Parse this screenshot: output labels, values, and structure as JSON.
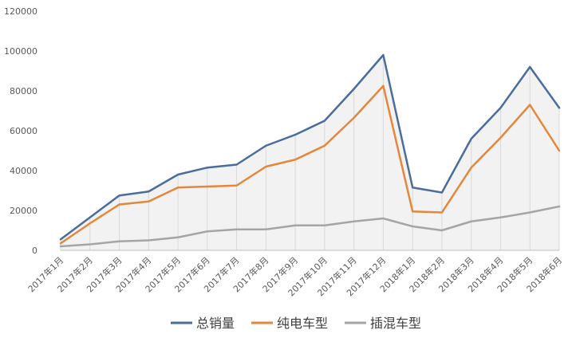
{
  "chart_data": {
    "type": "line",
    "title": "",
    "xlabel": "",
    "ylabel": "",
    "ylim": [
      0,
      120000
    ],
    "yticks": [
      0,
      20000,
      40000,
      60000,
      80000,
      100000,
      120000
    ],
    "grid": "vertical lines with light fill under total line",
    "legend_position": "bottom",
    "categories": [
      "2017年1月",
      "2017年2月",
      "2017年3月",
      "2017年4月",
      "2017年5月",
      "2017年6月",
      "2017年7月",
      "2017年8月",
      "2017年9月",
      "2017年10月",
      "2017年11月",
      "2017年12月",
      "2018年1月",
      "2018年2月",
      "2018年3月",
      "2018年4月",
      "2018年5月",
      "2018年6月"
    ],
    "series": [
      {
        "name": "总销量",
        "color": "#4a6d9c",
        "values": [
          5500,
          16500,
          27500,
          29500,
          38000,
          41500,
          43000,
          52500,
          58000,
          65000,
          81000,
          98000,
          31500,
          29000,
          56000,
          71500,
          92000,
          71500
        ]
      },
      {
        "name": "纯电车型",
        "color": "#e3873a",
        "values": [
          3500,
          13500,
          23000,
          24500,
          31500,
          32000,
          32500,
          42000,
          45500,
          52500,
          66500,
          82500,
          19500,
          19000,
          41500,
          56500,
          73000,
          50000
        ]
      },
      {
        "name": "插混车型",
        "color": "#a5a5a5",
        "values": [
          2000,
          3000,
          4500,
          5000,
          6500,
          9500,
          10500,
          10500,
          12500,
          12500,
          14500,
          16000,
          12000,
          10000,
          14500,
          16500,
          19000,
          22000
        ]
      }
    ]
  }
}
